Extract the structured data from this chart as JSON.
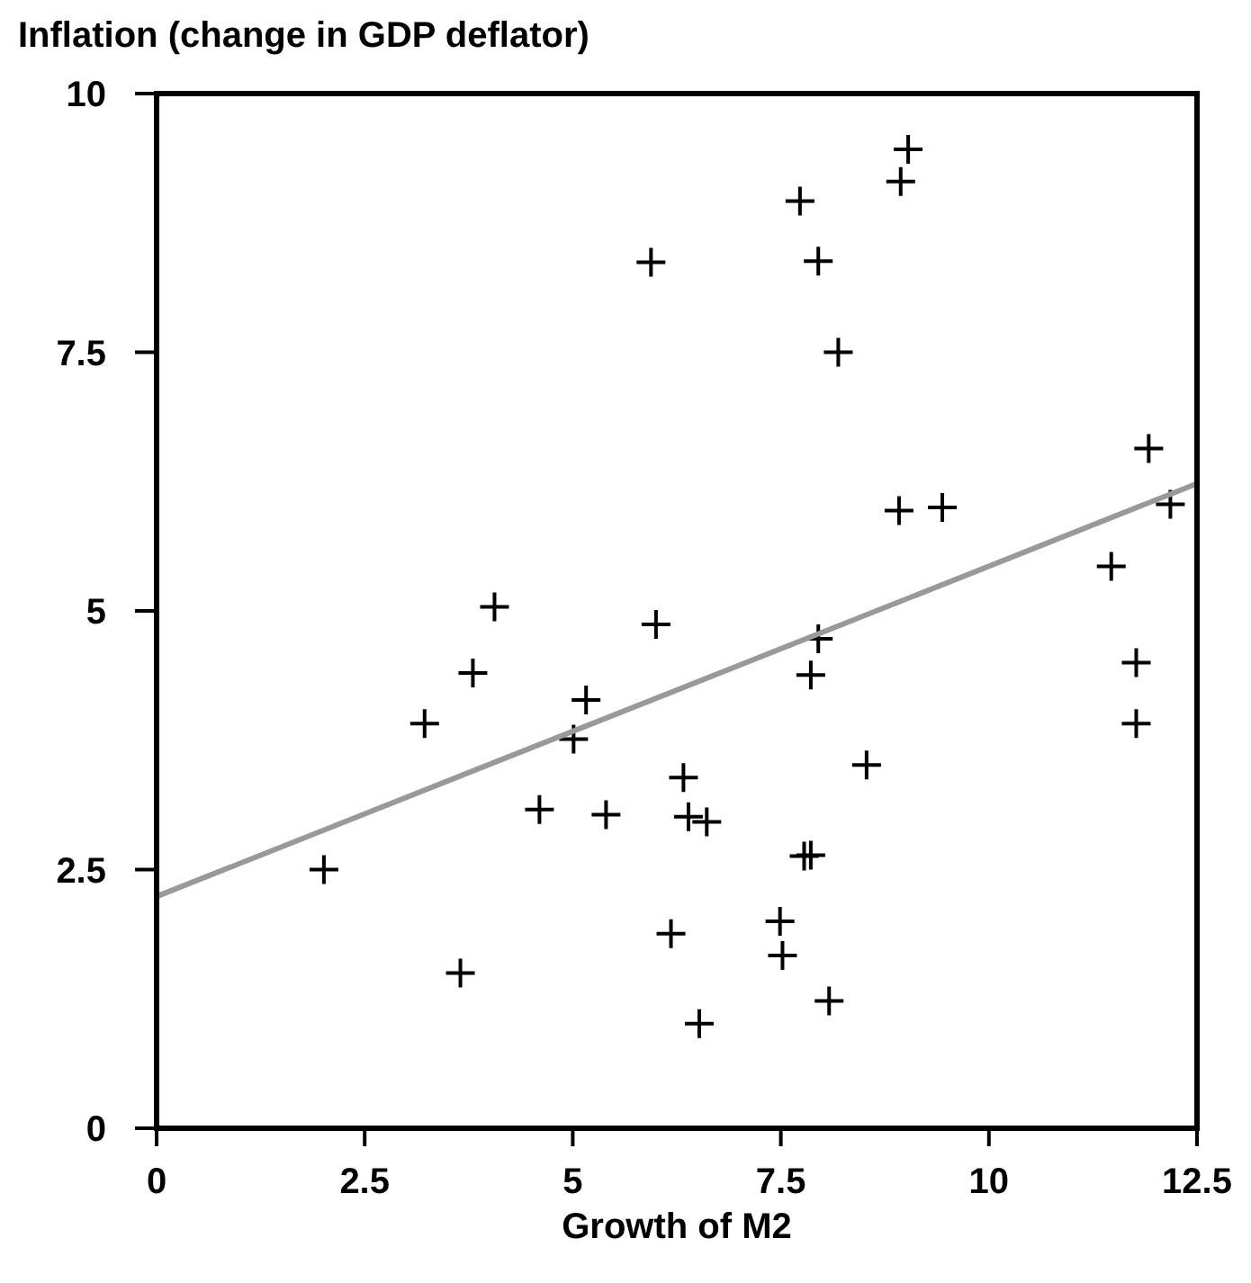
{
  "chart_data": {
    "type": "scatter",
    "ylabel": "Inflation (change in GDP deflator)",
    "xlabel": "Growth of M2",
    "xlim": [
      0,
      12.5
    ],
    "xticks": [
      0,
      2.5,
      5,
      7.5,
      10,
      12.5
    ],
    "ylim": [
      0,
      10
    ],
    "yticks": [
      0,
      2.5,
      5,
      7.5,
      10
    ],
    "grid": false,
    "series": [
      {
        "marker": "cross",
        "color": "#000000",
        "x": [
          2.01,
          3.22,
          3.8,
          4.06,
          3.65,
          4.6,
          5.01,
          5.16,
          5.4,
          6.0,
          5.94,
          7.73,
          9.03,
          8.94,
          7.95,
          8.19,
          11.92,
          12.18,
          8.92,
          9.44,
          11.47,
          7.95,
          7.86,
          11.77,
          11.77,
          8.53,
          6.33,
          6.39,
          6.61,
          7.78,
          7.86,
          6.18,
          7.49,
          7.52,
          8.08,
          6.52
        ],
        "values": [
          2.5,
          3.91,
          4.4,
          5.04,
          1.5,
          3.08,
          3.76,
          4.14,
          3.03,
          4.87,
          8.37,
          8.96,
          9.46,
          9.15,
          8.38,
          7.5,
          6.57,
          6.03,
          5.97,
          6.0,
          5.43,
          4.73,
          4.38,
          4.5,
          3.91,
          3.51,
          3.39,
          3.01,
          2.96,
          2.63,
          2.64,
          1.88,
          2.0,
          1.67,
          1.23,
          1.01
        ]
      },
      {
        "type": "line",
        "color": "#999999",
        "x": [
          0,
          12.5
        ],
        "values": [
          2.24,
          6.23
        ]
      }
    ]
  }
}
